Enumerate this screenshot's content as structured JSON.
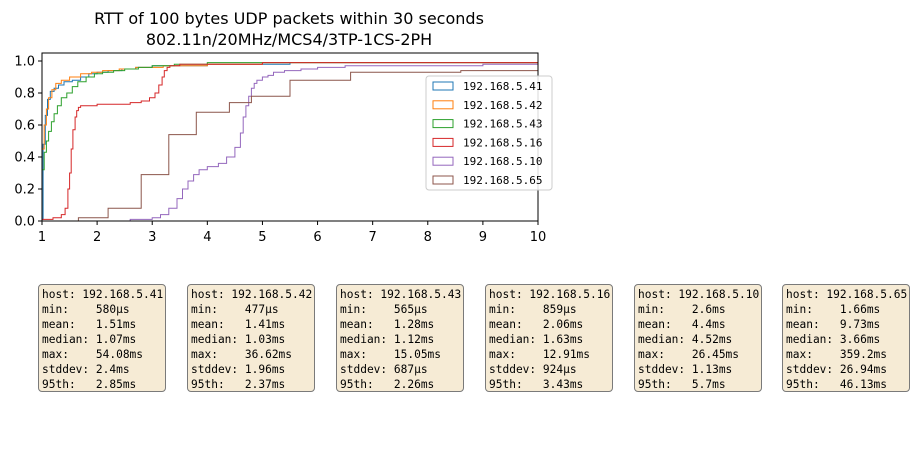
{
  "chart_data": {
    "type": "line",
    "title": "RTT of 100 bytes UDP packets within 30 seconds",
    "subtitle": "802.11n/20MHz/MCS4/3TP-1CS-2PH",
    "xlabel": "",
    "ylabel": "",
    "xlim": [
      1,
      10
    ],
    "ylim": [
      0,
      1.05
    ],
    "x_ticks": [
      1,
      2,
      3,
      4,
      5,
      6,
      7,
      8,
      9,
      10
    ],
    "y_ticks": [
      0.0,
      0.2,
      0.4,
      0.6,
      0.8,
      1.0
    ],
    "x_tick_labels": [
      "1",
      "2",
      "3",
      "4",
      "5",
      "6",
      "7",
      "8",
      "9",
      "10"
    ],
    "y_tick_labels": [
      "0.0",
      "0.2",
      "0.4",
      "0.6",
      "0.8",
      "1.0"
    ],
    "grid": false,
    "legend_position": "center-right",
    "series": [
      {
        "name": "192.168.5.41",
        "color": "#1f77b4",
        "x": [
          0.58,
          1.02,
          1.06,
          1.1,
          1.15,
          1.22,
          1.3,
          1.4,
          1.55,
          1.7,
          1.85,
          2.0,
          2.2,
          2.45,
          2.7,
          3.0,
          3.4,
          4.0,
          4.6,
          5.5,
          8.0,
          10
        ],
        "y": [
          0.01,
          0.48,
          0.66,
          0.76,
          0.81,
          0.83,
          0.85,
          0.87,
          0.88,
          0.9,
          0.92,
          0.93,
          0.94,
          0.95,
          0.96,
          0.97,
          0.97,
          0.98,
          0.98,
          0.99,
          0.99,
          0.99
        ]
      },
      {
        "name": "192.168.5.42",
        "color": "#ff7f0e",
        "x": [
          0.48,
          1.0,
          1.04,
          1.08,
          1.12,
          1.18,
          1.25,
          1.35,
          1.5,
          1.7,
          1.9,
          2.1,
          2.4,
          2.7,
          3.2,
          4.0,
          5.0,
          10
        ],
        "y": [
          0.01,
          0.45,
          0.6,
          0.7,
          0.77,
          0.82,
          0.86,
          0.88,
          0.9,
          0.92,
          0.93,
          0.94,
          0.95,
          0.96,
          0.97,
          0.98,
          0.99,
          0.99
        ]
      },
      {
        "name": "192.168.5.43",
        "color": "#2ca02c",
        "x": [
          0.57,
          1.0,
          1.04,
          1.08,
          1.12,
          1.17,
          1.22,
          1.28,
          1.35,
          1.45,
          1.55,
          1.65,
          1.8,
          1.95,
          2.1,
          2.3,
          2.5,
          2.75,
          3.0,
          3.4,
          4.0,
          10
        ],
        "y": [
          0.01,
          0.32,
          0.43,
          0.5,
          0.56,
          0.62,
          0.67,
          0.72,
          0.77,
          0.8,
          0.84,
          0.87,
          0.9,
          0.92,
          0.93,
          0.94,
          0.95,
          0.96,
          0.97,
          0.98,
          0.99,
          1.0
        ]
      },
      {
        "name": "192.168.5.16",
        "color": "#d62728",
        "x": [
          0.86,
          1.0,
          1.2,
          1.35,
          1.42,
          1.47,
          1.5,
          1.53,
          1.56,
          1.6,
          1.63,
          1.66,
          1.7,
          1.8,
          2.0,
          2.3,
          2.6,
          2.8,
          2.95,
          3.05,
          3.12,
          3.18,
          3.22,
          3.27,
          3.32,
          3.5,
          4.0,
          5.0,
          7.0,
          10
        ],
        "y": [
          0.01,
          0.01,
          0.02,
          0.04,
          0.08,
          0.2,
          0.3,
          0.45,
          0.57,
          0.65,
          0.69,
          0.71,
          0.72,
          0.72,
          0.73,
          0.73,
          0.74,
          0.75,
          0.77,
          0.8,
          0.85,
          0.9,
          0.94,
          0.96,
          0.97,
          0.98,
          0.98,
          0.99,
          0.99,
          1.0
        ]
      },
      {
        "name": "192.168.5.10",
        "color": "#9467bd",
        "x": [
          2.6,
          3.0,
          3.15,
          3.3,
          3.45,
          3.55,
          3.65,
          3.75,
          3.85,
          4.0,
          4.2,
          4.35,
          4.5,
          4.6,
          4.65,
          4.7,
          4.75,
          4.8,
          4.85,
          4.9,
          5.0,
          5.1,
          5.2,
          5.4,
          5.7,
          6.0,
          6.5,
          7.5,
          9.0,
          10
        ],
        "y": [
          0.01,
          0.02,
          0.04,
          0.08,
          0.14,
          0.2,
          0.25,
          0.29,
          0.32,
          0.34,
          0.36,
          0.4,
          0.46,
          0.55,
          0.65,
          0.72,
          0.78,
          0.83,
          0.86,
          0.88,
          0.9,
          0.91,
          0.93,
          0.94,
          0.95,
          0.96,
          0.97,
          0.97,
          0.98,
          0.98
        ]
      },
      {
        "name": "192.168.5.65",
        "color": "#8c564b",
        "x": [
          1.66,
          2.2,
          2.8,
          3.3,
          3.8,
          4.4,
          4.8,
          5.5,
          6.6,
          7.8,
          8.6,
          10
        ],
        "y": [
          0.02,
          0.08,
          0.29,
          0.54,
          0.68,
          0.74,
          0.78,
          0.88,
          0.93,
          0.93,
          0.94,
          0.94
        ]
      }
    ]
  },
  "stats": [
    {
      "lines": [
        "host: 192.168.5.41",
        "min:    580µs",
        "mean:   1.51ms",
        "median: 1.07ms",
        "max:    54.08ms",
        "stddev: 2.4ms",
        "95th:   2.85ms"
      ]
    },
    {
      "lines": [
        "host: 192.168.5.42",
        "min:    477µs",
        "mean:   1.41ms",
        "median: 1.03ms",
        "max:    36.62ms",
        "stddev: 1.96ms",
        "95th:   2.37ms"
      ]
    },
    {
      "lines": [
        "host: 192.168.5.43",
        "min:    565µs",
        "mean:   1.28ms",
        "median: 1.12ms",
        "max:    15.05ms",
        "stddev: 687µs",
        "95th:   2.26ms"
      ]
    },
    {
      "lines": [
        "host: 192.168.5.16",
        "min:    859µs",
        "mean:   2.06ms",
        "median: 1.63ms",
        "max:    12.91ms",
        "stddev: 924µs",
        "95th:   3.43ms"
      ]
    },
    {
      "lines": [
        "host: 192.168.5.10",
        "min:    2.6ms",
        "mean:   4.4ms",
        "median: 4.52ms",
        "max:    26.45ms",
        "stddev: 1.13ms",
        "95th:   5.7ms"
      ]
    },
    {
      "lines": [
        "host: 192.168.5.65",
        "min:    1.66ms",
        "mean:   9.73ms",
        "median: 3.66ms",
        "max:    359.2ms",
        "stddev: 26.94ms",
        "95th:   46.13ms"
      ]
    }
  ]
}
